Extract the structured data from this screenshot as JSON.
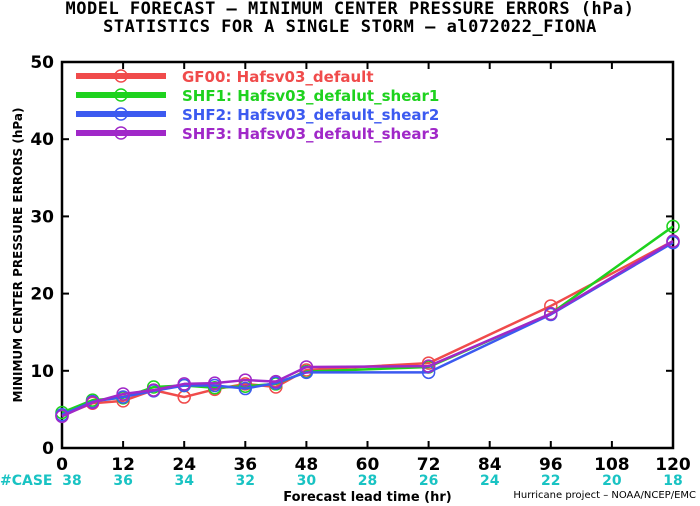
{
  "title_line1": "MODEL FORECAST – MINIMUM CENTER PRESSURE ERRORS (hPa)",
  "title_line2": "STATISTICS FOR A SINGLE STORM – al072022_FIONA",
  "credit": "Hurricane project – NOAA/NCEP/EMC",
  "case_label": "#CASE",
  "colors": {
    "case_text": "#19c3c3",
    "axis": "#000000"
  },
  "chart_data": {
    "type": "line",
    "title": "MODEL FORECAST – MINIMUM CENTER PRESSURE ERRORS (hPa)",
    "subtitle": "STATISTICS FOR A SINGLE STORM – al072022_FIONA",
    "xlabel": "Forecast lead time (hr)",
    "ylabel": "MINIMUM CENTER PRESSURE ERRORS (hPa)",
    "xlim": [
      0,
      120
    ],
    "ylim": [
      0,
      50
    ],
    "xticks": [
      0,
      12,
      24,
      36,
      48,
      60,
      72,
      84,
      96,
      108,
      120
    ],
    "yticks": [
      0,
      10,
      20,
      30,
      40,
      50
    ],
    "grid": false,
    "legend_position": "top-left",
    "cases": {
      "x": [
        0,
        12,
        24,
        36,
        48,
        60,
        72,
        84,
        96,
        108,
        120
      ],
      "values": [
        38,
        36,
        34,
        32,
        30,
        28,
        26,
        24,
        22,
        20,
        18
      ]
    },
    "series": [
      {
        "name": "GF00: Hafsv03_default",
        "color": "#f04b4b",
        "x": [
          0,
          6,
          12,
          18,
          24,
          30,
          36,
          42,
          48,
          72,
          96,
          120
        ],
        "values": [
          4.2,
          5.8,
          6.1,
          7.5,
          6.6,
          7.6,
          8.3,
          7.9,
          10.1,
          11.0,
          18.4,
          26.8
        ]
      },
      {
        "name": "SHF1: Hafsv03_defalut_shear1",
        "color": "#1ed21e",
        "x": [
          0,
          6,
          12,
          18,
          24,
          30,
          36,
          42,
          48,
          72,
          96,
          120
        ],
        "values": [
          4.6,
          6.2,
          6.5,
          7.9,
          8.1,
          7.8,
          8.0,
          8.3,
          9.9,
          10.5,
          17.4,
          28.7
        ]
      },
      {
        "name": "SHF2: Hafsv03_default_shear2",
        "color": "#3c5af0",
        "x": [
          0,
          6,
          12,
          18,
          24,
          30,
          36,
          42,
          48,
          72,
          96,
          120
        ],
        "values": [
          4.3,
          6.0,
          6.6,
          7.4,
          8.1,
          8.1,
          7.7,
          8.4,
          9.8,
          9.8,
          17.3,
          26.6
        ]
      },
      {
        "name": "SHF3: Hafsv03_default_shear3",
        "color": "#a028c8",
        "x": [
          0,
          6,
          12,
          18,
          24,
          30,
          36,
          42,
          48,
          72,
          96,
          120
        ],
        "values": [
          4.1,
          5.9,
          7.0,
          7.5,
          8.3,
          8.4,
          8.8,
          8.6,
          10.5,
          10.6,
          17.4,
          26.8
        ]
      }
    ]
  }
}
